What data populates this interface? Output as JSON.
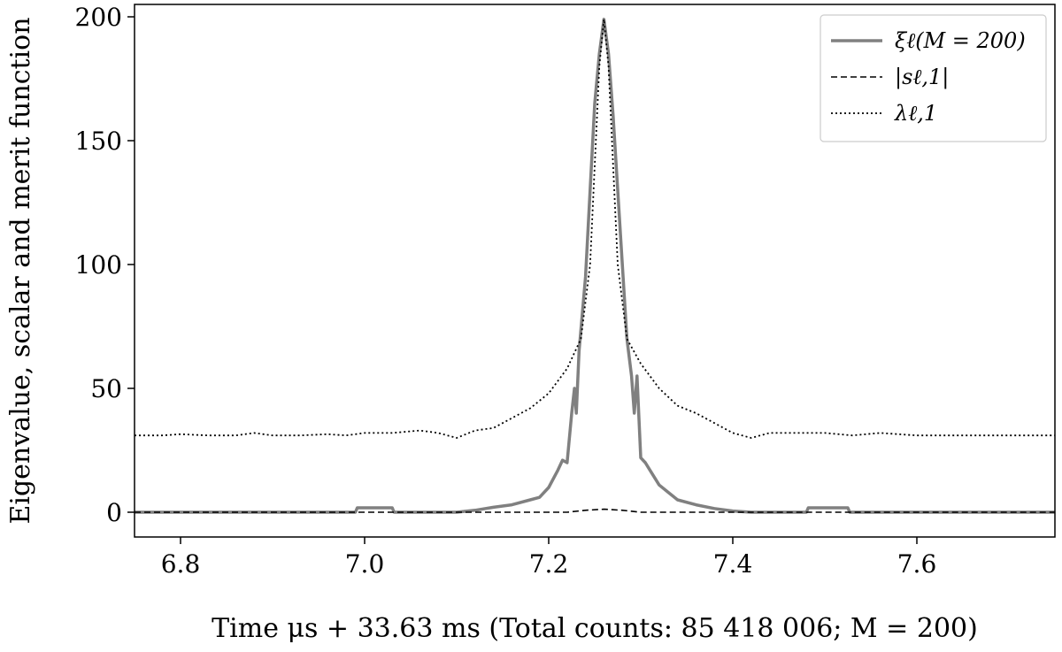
{
  "chart_data": {
    "type": "line",
    "xlabel": "Time μs + 33.63 ms (Total counts: 85 418 006; M = 200)",
    "ylabel": "Eigenvalue, scalar and merit function",
    "xlim": [
      6.75,
      7.75
    ],
    "ylim": [
      -10,
      205
    ],
    "x_ticks": [
      6.8,
      7.0,
      7.2,
      7.4,
      7.6
    ],
    "x_tick_labels": [
      "6.8",
      "7.0",
      "7.2",
      "7.4",
      "7.6"
    ],
    "y_ticks": [
      0,
      50,
      100,
      150,
      200
    ],
    "y_tick_labels": [
      "0",
      "50",
      "100",
      "150",
      "200"
    ],
    "grid": false,
    "legend_position": "top-right",
    "series": [
      {
        "name": "ξℓ(M = 200)",
        "style": "solid",
        "color": "#808080",
        "points": [
          [
            6.75,
            0
          ],
          [
            6.99,
            0
          ],
          [
            6.992,
            1.8
          ],
          [
            7.03,
            1.8
          ],
          [
            7.032,
            0
          ],
          [
            7.1,
            0
          ],
          [
            7.12,
            0.8
          ],
          [
            7.14,
            2
          ],
          [
            7.16,
            3
          ],
          [
            7.18,
            5
          ],
          [
            7.19,
            6
          ],
          [
            7.2,
            10
          ],
          [
            7.21,
            17
          ],
          [
            7.215,
            21
          ],
          [
            7.22,
            20
          ],
          [
            7.225,
            40
          ],
          [
            7.228,
            50
          ],
          [
            7.23,
            40
          ],
          [
            7.233,
            65
          ],
          [
            7.24,
            95
          ],
          [
            7.245,
            130
          ],
          [
            7.25,
            165
          ],
          [
            7.255,
            185
          ],
          [
            7.26,
            199
          ],
          [
            7.265,
            185
          ],
          [
            7.27,
            160
          ],
          [
            7.275,
            130
          ],
          [
            7.28,
            100
          ],
          [
            7.285,
            70
          ],
          [
            7.29,
            55
          ],
          [
            7.293,
            40
          ],
          [
            7.296,
            55
          ],
          [
            7.3,
            22
          ],
          [
            7.305,
            20
          ],
          [
            7.31,
            17
          ],
          [
            7.32,
            11
          ],
          [
            7.33,
            8
          ],
          [
            7.34,
            5
          ],
          [
            7.36,
            3
          ],
          [
            7.38,
            1.5
          ],
          [
            7.4,
            0.5
          ],
          [
            7.42,
            0
          ],
          [
            7.48,
            0
          ],
          [
            7.482,
            1.8
          ],
          [
            7.525,
            1.8
          ],
          [
            7.527,
            0
          ],
          [
            7.75,
            0
          ]
        ]
      },
      {
        "name": "|sℓ,1|",
        "style": "dashed",
        "color": "#000000",
        "points": [
          [
            6.75,
            0
          ],
          [
            7.22,
            0
          ],
          [
            7.24,
            0.8
          ],
          [
            7.26,
            1.2
          ],
          [
            7.28,
            0.8
          ],
          [
            7.3,
            0
          ],
          [
            7.75,
            0
          ]
        ]
      },
      {
        "name": "λℓ,1",
        "style": "dotted",
        "color": "#000000",
        "points": [
          [
            6.75,
            31
          ],
          [
            6.78,
            31
          ],
          [
            6.8,
            31.5
          ],
          [
            6.83,
            31
          ],
          [
            6.86,
            31
          ],
          [
            6.88,
            32
          ],
          [
            6.9,
            31
          ],
          [
            6.93,
            31
          ],
          [
            6.96,
            31.5
          ],
          [
            6.98,
            31
          ],
          [
            7.0,
            32
          ],
          [
            7.03,
            32
          ],
          [
            7.06,
            33
          ],
          [
            7.08,
            32
          ],
          [
            7.1,
            30
          ],
          [
            7.12,
            33
          ],
          [
            7.14,
            34
          ],
          [
            7.16,
            38
          ],
          [
            7.18,
            42
          ],
          [
            7.2,
            48
          ],
          [
            7.22,
            58
          ],
          [
            7.235,
            70
          ],
          [
            7.245,
            100
          ],
          [
            7.25,
            140
          ],
          [
            7.255,
            180
          ],
          [
            7.26,
            199
          ],
          [
            7.265,
            180
          ],
          [
            7.27,
            140
          ],
          [
            7.275,
            100
          ],
          [
            7.285,
            70
          ],
          [
            7.3,
            60
          ],
          [
            7.32,
            50
          ],
          [
            7.34,
            43
          ],
          [
            7.36,
            40
          ],
          [
            7.38,
            36
          ],
          [
            7.4,
            32
          ],
          [
            7.42,
            30
          ],
          [
            7.44,
            32
          ],
          [
            7.47,
            32
          ],
          [
            7.5,
            32
          ],
          [
            7.53,
            31
          ],
          [
            7.56,
            32
          ],
          [
            7.6,
            31
          ],
          [
            7.65,
            31
          ],
          [
            7.7,
            31
          ],
          [
            7.75,
            31
          ]
        ]
      }
    ]
  },
  "legend": {
    "entries": [
      {
        "label": "ξℓ(M = 200)"
      },
      {
        "label": "|sℓ,1|"
      },
      {
        "label": "λℓ,1"
      }
    ]
  }
}
